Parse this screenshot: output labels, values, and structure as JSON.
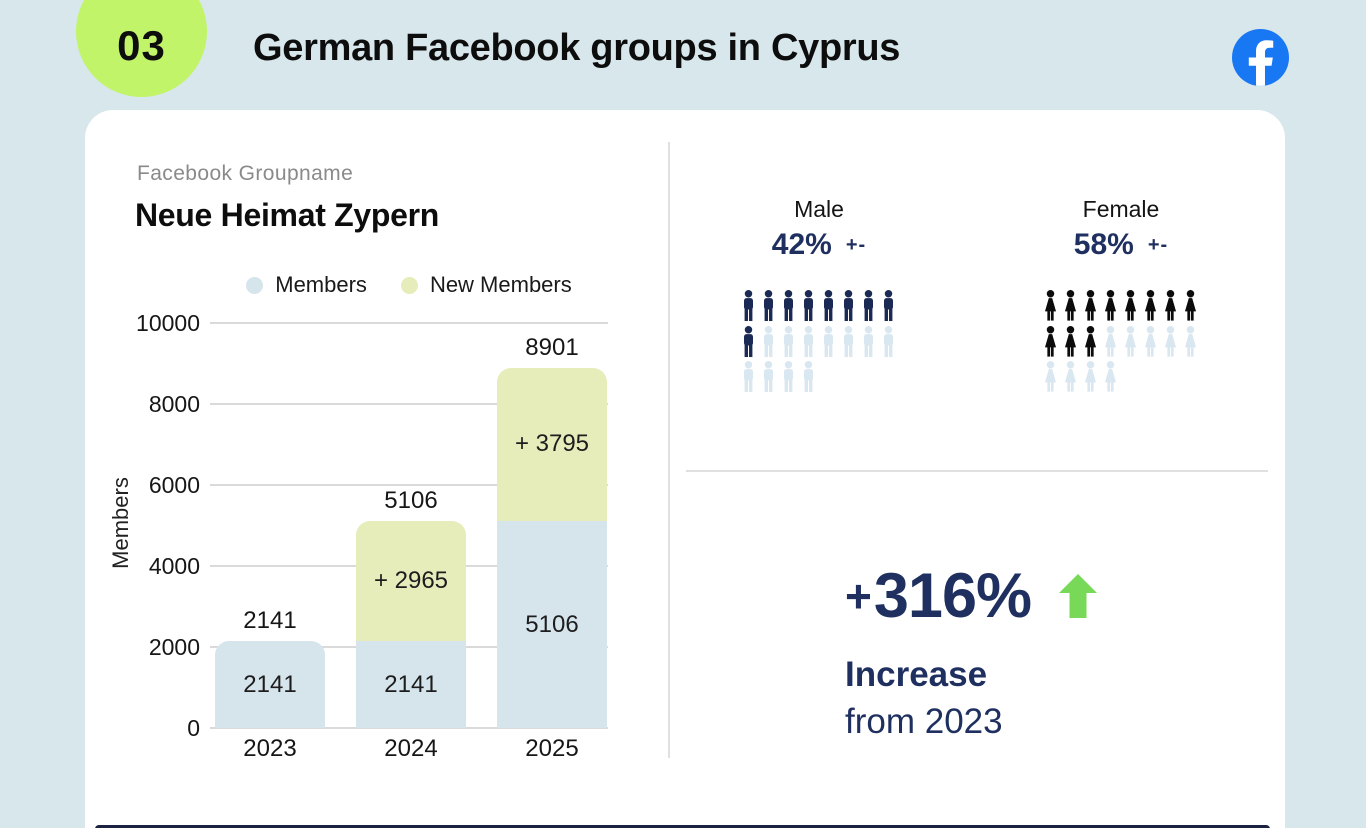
{
  "colors": {
    "background": "#d8e7ec",
    "card": "#ffffff",
    "badge": "#c1f468",
    "navy": "#1f3060",
    "facebook_blue": "#1877f2",
    "bar_members": "#d6e4ec",
    "bar_new_members": "#e6edbb",
    "icon_empty": "#d9e7f1",
    "male_filled": "#1b2a54",
    "female_filled": "#0c0c0c",
    "arrow_green": "#77d957",
    "divider": "#e0e0e0",
    "text_dark": "#121212",
    "text_gray": "#8a8a8a"
  },
  "header": {
    "badge": "03",
    "title": "German Facebook groups in Cyprus",
    "logo_icon": "facebook-icon"
  },
  "group": {
    "label": "Facebook Groupname",
    "name": "Neue Heimat Zypern"
  },
  "chart_data": {
    "type": "bar",
    "stacked": true,
    "title": "",
    "xlabel": "",
    "ylabel": "Members",
    "categories": [
      "2023",
      "2024",
      "2025"
    ],
    "series": [
      {
        "name": "Members",
        "color": "#d6e4ec",
        "values": [
          2141,
          2141,
          5106
        ],
        "labels": [
          "2141",
          "2141",
          "5106"
        ]
      },
      {
        "name": "New Members",
        "color": "#e6edbb",
        "values": [
          0,
          2965,
          3795
        ],
        "labels": [
          "",
          "+ 2965",
          "+ 3795"
        ]
      }
    ],
    "totals": [
      2141,
      5106,
      8901
    ],
    "total_labels": [
      "2141",
      "5106",
      "8901"
    ],
    "ylim": [
      0,
      10000
    ],
    "yticks": [
      0,
      2000,
      4000,
      6000,
      8000,
      10000
    ],
    "ytick_labels": [
      "0",
      "2000",
      "4000",
      "6000",
      "8000",
      "10000"
    ],
    "grid": true,
    "legend_position": "top"
  },
  "demographics": {
    "male": {
      "label": "Male",
      "percent": "42%",
      "tolerance": "+-",
      "filled": 9,
      "total": 20,
      "per_row": 8,
      "icon": "male"
    },
    "female": {
      "label": "Female",
      "percent": "58%",
      "tolerance": "+-",
      "filled": 11,
      "total": 20,
      "per_row": 8,
      "icon": "female"
    }
  },
  "growth": {
    "plus": "+",
    "value": "316%",
    "arrow_icon": "up-arrow-icon",
    "headline": "Increase",
    "subline": "from 2023"
  }
}
